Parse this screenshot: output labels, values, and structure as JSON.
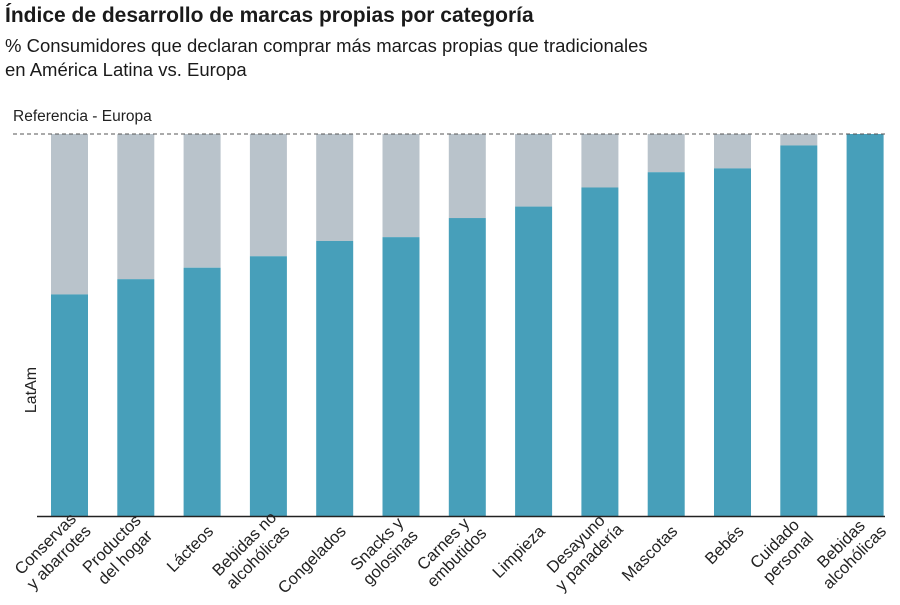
{
  "chart_data": {
    "type": "bar",
    "stacked": true,
    "title": "Índice de desarrollo de marcas propias por categoría",
    "subtitle_lines": [
      "% Consumidores que declaran comprar más marcas propias que tradicionales",
      "en América Latina vs. Europa"
    ],
    "reference_label": "Referencia - Europa",
    "ylabel": "LatAm",
    "ylim": [
      0,
      100
    ],
    "grid": false,
    "categories": [
      [
        "Conservas",
        "y abarrotes"
      ],
      [
        "Productos",
        "del hogar"
      ],
      [
        "Lácteos"
      ],
      [
        "Bebidas no",
        "alcohólicas"
      ],
      [
        "Congelados"
      ],
      [
        "Snacks y",
        "golosinas"
      ],
      [
        "Carnes y",
        "embutidos"
      ],
      [
        "Limpieza"
      ],
      [
        "Desayuno",
        "y panadería"
      ],
      [
        "Mascotas"
      ],
      [
        "Bebés"
      ],
      [
        "Cuidado",
        "personal"
      ],
      [
        "Bebidas",
        "alcohólicas"
      ]
    ],
    "values": [
      58,
      62,
      65,
      68,
      72,
      73,
      78,
      81,
      86,
      90,
      91,
      97,
      100
    ],
    "colors": {
      "latam": "#479fba",
      "europe_gap": "#b9c3cb",
      "reference_line": "#555555"
    }
  }
}
